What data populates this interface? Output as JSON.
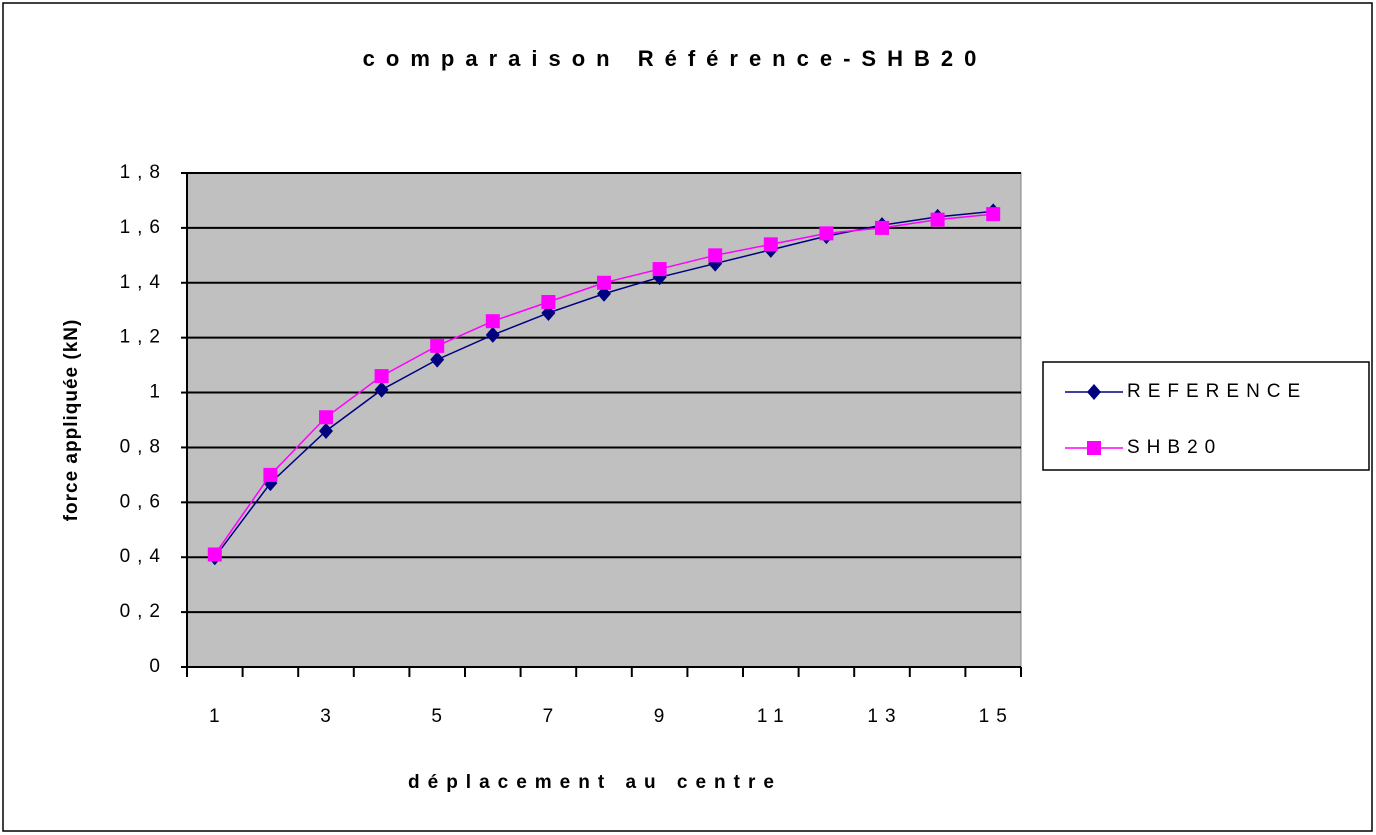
{
  "chart_data": {
    "type": "line",
    "title": "comparaison Référence-SHB20",
    "xlabel": "déplacement au centre",
    "ylabel": "force appliquée (kN)",
    "categories": [
      "1",
      null,
      "3",
      null,
      "5",
      null,
      "7",
      null,
      "9",
      null,
      "11",
      null,
      "13",
      null,
      "15"
    ],
    "series": [
      {
        "name": "REFERENCE",
        "color": "#000080",
        "marker": "diamond",
        "values": [
          0.4,
          0.67,
          0.86,
          1.01,
          1.12,
          1.21,
          1.29,
          1.36,
          1.42,
          1.47,
          1.52,
          1.57,
          1.61,
          1.64,
          1.66
        ]
      },
      {
        "name": "SHB20",
        "color": "#ff00ff",
        "marker": "square",
        "values": [
          0.41,
          0.7,
          0.91,
          1.06,
          1.17,
          1.26,
          1.33,
          1.4,
          1.45,
          1.5,
          1.54,
          1.58,
          1.6,
          1.63,
          1.65
        ]
      }
    ],
    "ylim": [
      0,
      1.8
    ],
    "yticks": [
      0,
      {
        "value": 0.2,
        "label": "0,2"
      },
      {
        "value": 0.4,
        "label": "0,4"
      },
      {
        "value": 0.6,
        "label": "0,6"
      },
      {
        "value": 0.8,
        "label": "0,8"
      },
      1,
      {
        "value": 1.2,
        "label": "1,2"
      },
      {
        "value": 1.4,
        "label": "1,4"
      },
      {
        "value": 1.6,
        "label": "1,6"
      },
      {
        "value": 1.8,
        "label": "1,8"
      }
    ],
    "grid": true,
    "legend": "right",
    "plot_background": "#c0c0c0"
  }
}
